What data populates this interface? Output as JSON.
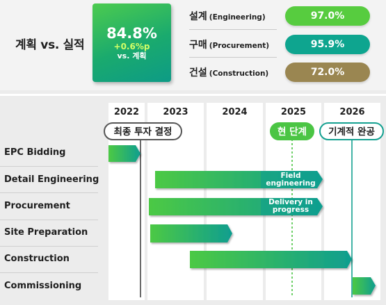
{
  "summary": {
    "title": "계획 vs. 실적",
    "kpi": {
      "value": "84.8%",
      "delta": "+0.6%p",
      "sub": "vs. 계획"
    },
    "metrics": [
      {
        "label": "설계",
        "label_en": "(Engineering)",
        "value": "97.0%",
        "color": "#57cc3f"
      },
      {
        "label": "구매",
        "label_en": "(Procurement)",
        "value": "95.9%",
        "color": "#0ea58f"
      },
      {
        "label": "건설",
        "label_en": "(Construction)",
        "value": "72.0%",
        "color": "#9a8651"
      }
    ]
  },
  "gantt": {
    "years": [
      "2022",
      "2023",
      "2024",
      "2025",
      "2026"
    ],
    "callouts": {
      "decision": "최종 투자 결정",
      "now": "현 단계",
      "done": "기계적 완공"
    },
    "rows": [
      {
        "label": "EPC Bidding"
      },
      {
        "label": "Detail Engineering",
        "bar_text": "Field engineering"
      },
      {
        "label": "Procurement",
        "bar_text": "Delivery in progress"
      },
      {
        "label": "Site Preparation"
      },
      {
        "label": "Construction"
      },
      {
        "label": "Commissioning"
      }
    ],
    "colors": {
      "bar_start": "#4cc944",
      "bar_end": "#0f9e8f",
      "now_line": "#4bc544",
      "done_line": "#14a090"
    }
  }
}
